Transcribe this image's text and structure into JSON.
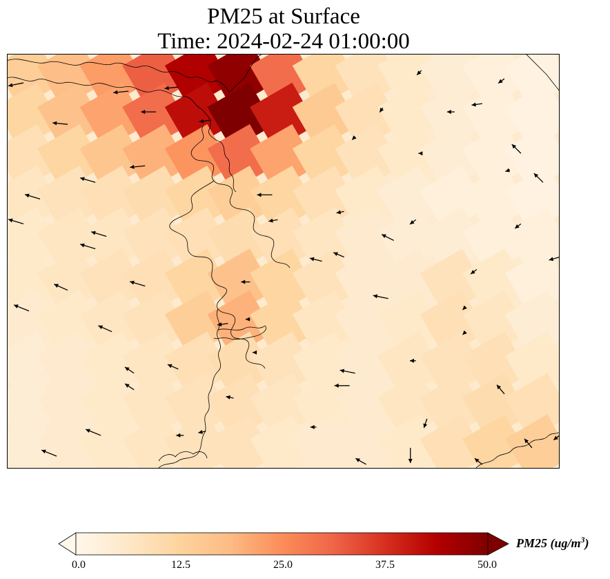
{
  "title": "PM25 at Surface",
  "subtitle": "Time: 2024-02-24 01:00:00",
  "colorbar": {
    "label_prefix": "PM25 (ug/m",
    "label_exponent": "3",
    "label_suffix": ")",
    "vmin": 0.0,
    "vmax": 50.0,
    "ticks": [
      "0.0",
      "12.5",
      "25.0",
      "37.5",
      "50.0"
    ],
    "extend": "both",
    "colormap": "OrRd",
    "colors": [
      "#fff7ec",
      "#fee8c8",
      "#fdd49e",
      "#fdbb84",
      "#fc8d59",
      "#ef6548",
      "#d7301f",
      "#b30000",
      "#7f0000"
    ]
  },
  "chart_data": {
    "type": "heatmap",
    "variable": "PM25",
    "units": "ug/m3",
    "grid": {
      "rows": 10,
      "cols": 13,
      "values": [
        [
          14,
          18,
          23,
          32,
          44,
          48,
          30,
          12,
          8,
          6,
          4,
          3,
          2
        ],
        [
          12,
          17,
          22,
          30,
          42,
          50,
          40,
          15,
          9,
          6,
          4,
          3,
          2
        ],
        [
          9,
          12,
          16,
          20,
          24,
          30,
          22,
          12,
          8,
          6,
          4,
          3,
          2
        ],
        [
          7,
          8,
          9,
          10,
          12,
          14,
          12,
          9,
          6,
          4,
          3,
          3,
          2
        ],
        [
          6,
          7,
          7,
          8,
          9,
          10,
          9,
          7,
          5,
          4,
          4,
          3,
          3
        ],
        [
          6,
          7,
          8,
          9,
          12,
          17,
          12,
          8,
          5,
          5,
          8,
          6,
          3
        ],
        [
          5,
          6,
          7,
          8,
          14,
          20,
          12,
          7,
          5,
          6,
          9,
          7,
          4
        ],
        [
          4,
          5,
          6,
          7,
          9,
          10,
          8,
          6,
          5,
          7,
          8,
          9,
          6
        ],
        [
          4,
          5,
          6,
          7,
          8,
          9,
          7,
          6,
          5,
          7,
          8,
          10,
          9
        ],
        [
          4,
          5,
          6,
          7,
          8,
          8,
          6,
          5,
          5,
          6,
          9,
          12,
          14
        ]
      ]
    },
    "wind_vectors": [
      {
        "x": 0.03,
        "y": 0.07,
        "u": -1,
        "v": 0.2
      },
      {
        "x": 0.22,
        "y": 0.09,
        "u": -1,
        "v": 0.1
      },
      {
        "x": 0.31,
        "y": 0.08,
        "u": -0.9,
        "v": 0.1
      },
      {
        "x": 0.27,
        "y": 0.14,
        "u": -1,
        "v": 0
      },
      {
        "x": 0.11,
        "y": 0.17,
        "u": -1,
        "v": -0.1
      },
      {
        "x": 0.37,
        "y": 0.16,
        "u": -0.8,
        "v": 0.1
      },
      {
        "x": 0.25,
        "y": 0.27,
        "u": -1,
        "v": 0.1
      },
      {
        "x": 0.16,
        "y": 0.31,
        "u": -1,
        "v": -0.3
      },
      {
        "x": 0.06,
        "y": 0.35,
        "u": -1,
        "v": -0.3
      },
      {
        "x": 0.03,
        "y": 0.41,
        "u": -1,
        "v": -0.3
      },
      {
        "x": 0.18,
        "y": 0.44,
        "u": -1,
        "v": -0.3
      },
      {
        "x": 0.16,
        "y": 0.47,
        "u": -1,
        "v": -0.3
      },
      {
        "x": 0.11,
        "y": 0.57,
        "u": -0.9,
        "v": -0.4
      },
      {
        "x": 0.25,
        "y": 0.56,
        "u": -1,
        "v": -0.3
      },
      {
        "x": 0.04,
        "y": 0.62,
        "u": -1,
        "v": -0.4
      },
      {
        "x": 0.19,
        "y": 0.67,
        "u": -0.9,
        "v": -0.4
      },
      {
        "x": 0.23,
        "y": 0.77,
        "u": -0.6,
        "v": -0.4
      },
      {
        "x": 0.31,
        "y": 0.76,
        "u": -0.7,
        "v": -0.3
      },
      {
        "x": 0.23,
        "y": 0.81,
        "u": -0.6,
        "v": -0.4
      },
      {
        "x": 0.17,
        "y": 0.92,
        "u": -1,
        "v": -0.4
      },
      {
        "x": 0.09,
        "y": 0.97,
        "u": -1,
        "v": -0.4
      },
      {
        "x": 0.32,
        "y": 0.92,
        "u": -0.5,
        "v": 0
      },
      {
        "x": 0.36,
        "y": 0.91,
        "u": -0.5,
        "v": 0.1
      },
      {
        "x": 0.48,
        "y": 0.34,
        "u": -1,
        "v": 0
      },
      {
        "x": 0.49,
        "y": 0.4,
        "u": -0.6,
        "v": 0.1
      },
      {
        "x": 0.61,
        "y": 0.38,
        "u": -0.5,
        "v": 0.1
      },
      {
        "x": 0.74,
        "y": 0.4,
        "u": -0.4,
        "v": 0.3
      },
      {
        "x": 0.57,
        "y": 0.5,
        "u": -0.8,
        "v": -0.2
      },
      {
        "x": 0.61,
        "y": 0.49,
        "u": -0.7,
        "v": -0.3
      },
      {
        "x": 0.7,
        "y": 0.45,
        "u": -0.8,
        "v": -0.4
      },
      {
        "x": 0.93,
        "y": 0.41,
        "u": -0.4,
        "v": 0.3
      },
      {
        "x": 0.85,
        "y": 0.52,
        "u": -0.4,
        "v": 0.3
      },
      {
        "x": 1.0,
        "y": 0.49,
        "u": -0.7,
        "v": 0.2
      },
      {
        "x": 0.69,
        "y": 0.59,
        "u": -1,
        "v": -0.2
      },
      {
        "x": 0.44,
        "y": 0.55,
        "u": -0.6,
        "v": 0
      },
      {
        "x": 0.4,
        "y": 0.65,
        "u": -0.7,
        "v": 0.1
      },
      {
        "x": 0.74,
        "y": 0.74,
        "u": -0.4,
        "v": 0
      },
      {
        "x": 0.63,
        "y": 0.77,
        "u": -1,
        "v": -0.2
      },
      {
        "x": 0.62,
        "y": 0.8,
        "u": -1,
        "v": 0
      },
      {
        "x": 0.41,
        "y": 0.83,
        "u": -0.5,
        "v": -0.1
      },
      {
        "x": 0.56,
        "y": 0.9,
        "u": -0.4,
        "v": 0
      },
      {
        "x": 0.76,
        "y": 0.88,
        "u": -0.2,
        "v": 0.6
      },
      {
        "x": 0.73,
        "y": 0.95,
        "u": 0,
        "v": 1
      },
      {
        "x": 0.9,
        "y": 0.82,
        "u": -0.5,
        "v": -0.6
      },
      {
        "x": 0.95,
        "y": 0.95,
        "u": -0.5,
        "v": -0.6
      },
      {
        "x": 1.0,
        "y": 0.92,
        "u": -0.4,
        "v": 0.3
      },
      {
        "x": 0.65,
        "y": 0.99,
        "u": -0.7,
        "v": -0.4
      },
      {
        "x": 0.86,
        "y": 0.99,
        "u": -0.5,
        "v": -0.4
      },
      {
        "x": 0.93,
        "y": 0.24,
        "u": -0.6,
        "v": -0.6
      },
      {
        "x": 0.97,
        "y": 0.31,
        "u": -0.6,
        "v": -0.6
      },
      {
        "x": 0.86,
        "y": 0.12,
        "u": -0.7,
        "v": 0.1
      },
      {
        "x": 0.81,
        "y": 0.14,
        "u": -0.5,
        "v": 0
      },
      {
        "x": 0.75,
        "y": 0.04,
        "u": -0.3,
        "v": 0.3
      },
      {
        "x": 0.9,
        "y": 0.06,
        "u": -0.4,
        "v": 0.3
      },
      {
        "x": 0.68,
        "y": 0.13,
        "u": -0.2,
        "v": 0.3
      },
      {
        "x": 0.63,
        "y": 0.2,
        "u": -0.2,
        "v": 0.2
      },
      {
        "x": 0.75,
        "y": 0.24,
        "u": -0.2,
        "v": 0
      },
      {
        "x": 0.91,
        "y": 0.28,
        "u": -0.3,
        "v": 0.1
      },
      {
        "x": 0.83,
        "y": 0.67,
        "u": -0.2,
        "v": 0.2
      },
      {
        "x": 0.83,
        "y": 0.61,
        "u": -0.2,
        "v": 0.2
      },
      {
        "x": 0.44,
        "y": 0.64,
        "u": -0.3,
        "v": 0
      },
      {
        "x": 0.45,
        "y": 0.72,
        "u": -0.2,
        "v": 0
      }
    ]
  }
}
